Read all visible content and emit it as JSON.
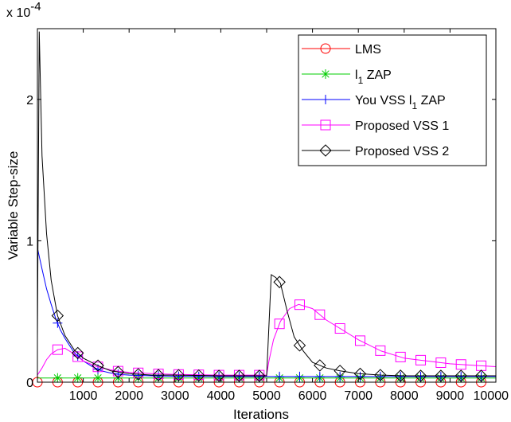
{
  "chart_data": {
    "type": "line",
    "xlabel": "Iterations",
    "ylabel": "Variable Step-size",
    "y_multiplier": "x 10",
    "y_exponent": "-4",
    "xlim": [
      0,
      10000
    ],
    "ylim": [
      0,
      2.5
    ],
    "x_ticks": [
      {
        "value": 1000,
        "label": "1000"
      },
      {
        "value": 2000,
        "label": "2000"
      },
      {
        "value": 3000,
        "label": "3000"
      },
      {
        "value": 4000,
        "label": "4000"
      },
      {
        "value": 5000,
        "label": "5000"
      },
      {
        "value": 6000,
        "label": "6000"
      },
      {
        "value": 7000,
        "label": "7000"
      },
      {
        "value": 8000,
        "label": "8000"
      },
      {
        "value": 9000,
        "label": "9000"
      },
      {
        "value": 10000,
        "label": "10000"
      }
    ],
    "y_ticks": [
      {
        "value": 0,
        "label": "0"
      },
      {
        "value": 1,
        "label": "1"
      },
      {
        "value": 2,
        "label": "2"
      }
    ],
    "grid": false,
    "legend_position": "top-right",
    "series": [
      {
        "name": "LMS",
        "color": "#ff0000",
        "marker": "circle",
        "x": [
          0,
          10000
        ],
        "y": [
          0,
          0
        ],
        "marker_x": [
          0,
          440,
          880,
          1320,
          1760,
          2200,
          2640,
          3080,
          3520,
          3960,
          4400,
          4840,
          5280,
          5720,
          6160,
          6600,
          7040,
          7480,
          7920,
          8360,
          8800,
          9240,
          9680
        ]
      },
      {
        "name": "l1 ZAP",
        "legend_main": "l",
        "legend_sub": "1",
        "legend_rest": " ZAP",
        "color": "#00cc00",
        "marker": "asterisk",
        "x": [
          0,
          10000
        ],
        "y": [
          0.03,
          0.03
        ],
        "marker_x": [
          440,
          880,
          1320,
          1760,
          2200,
          2640,
          3080,
          3520,
          3960,
          4400,
          4840,
          5280,
          5720,
          6160,
          6600,
          7040,
          7480,
          7920,
          8360,
          8800,
          9240,
          9680
        ]
      },
      {
        "name": "You VSS l1 ZAP",
        "legend_main": "You VSS l",
        "legend_sub": "1",
        "legend_rest": " ZAP",
        "color": "#0000ff",
        "marker": "plus",
        "x": [
          0,
          100,
          200,
          300,
          400,
          500,
          600,
          700,
          800,
          900,
          1000,
          1200,
          1400,
          1600,
          1800,
          2000,
          2500,
          3000,
          4000,
          5000,
          6000,
          7000,
          8000,
          9000,
          10000
        ],
        "y": [
          0.95,
          0.8,
          0.66,
          0.55,
          0.45,
          0.37,
          0.31,
          0.26,
          0.21,
          0.18,
          0.15,
          0.11,
          0.08,
          0.065,
          0.055,
          0.05,
          0.045,
          0.042,
          0.04,
          0.04,
          0.04,
          0.04,
          0.04,
          0.04,
          0.04
        ],
        "marker_x": [
          440,
          880,
          1320,
          1760,
          2200,
          2640,
          3080,
          3520,
          3960,
          4400,
          4840,
          5280,
          5720,
          6160,
          6600,
          7040,
          7480,
          7920,
          8360,
          8800,
          9240,
          9680
        ]
      },
      {
        "name": "Proposed VSS 1",
        "color": "#ff00ff",
        "marker": "square",
        "x": [
          0,
          100,
          200,
          300,
          440,
          600,
          800,
          1000,
          1300,
          1700,
          2000,
          2500,
          3000,
          4000,
          5000,
          5050,
          5150,
          5300,
          5500,
          5700,
          6000,
          6300,
          6600,
          7000,
          7500,
          8000,
          8500,
          9000,
          9500,
          10000
        ],
        "y": [
          0.05,
          0.1,
          0.16,
          0.2,
          0.23,
          0.24,
          0.2,
          0.15,
          0.11,
          0.08,
          0.07,
          0.06,
          0.055,
          0.05,
          0.05,
          0.15,
          0.3,
          0.43,
          0.52,
          0.55,
          0.52,
          0.44,
          0.38,
          0.3,
          0.22,
          0.17,
          0.15,
          0.13,
          0.12,
          0.11
        ],
        "marker_x": [
          440,
          880,
          1320,
          1760,
          2200,
          2640,
          3080,
          3520,
          3960,
          4400,
          4840,
          5280,
          5720,
          6160,
          6600,
          7040,
          7480,
          7920,
          8360,
          8800,
          9240,
          9680
        ]
      },
      {
        "name": "Proposed VSS 2",
        "color": "#000000",
        "marker": "diamond",
        "x": [
          0,
          40,
          100,
          200,
          300,
          440,
          600,
          800,
          1000,
          1300,
          1600,
          2000,
          2500,
          3000,
          4000,
          5000,
          5100,
          5200,
          5300,
          5450,
          5600,
          5800,
          6000,
          6300,
          6600,
          7000,
          7500,
          8000,
          9000,
          10000
        ],
        "y": [
          0.3,
          2.48,
          1.6,
          1.05,
          0.72,
          0.47,
          0.33,
          0.23,
          0.17,
          0.12,
          0.08,
          0.06,
          0.05,
          0.05,
          0.045,
          0.045,
          0.76,
          0.74,
          0.7,
          0.5,
          0.32,
          0.22,
          0.14,
          0.1,
          0.08,
          0.06,
          0.05,
          0.045,
          0.045,
          0.045
        ],
        "marker_x": [
          440,
          880,
          1320,
          1760,
          2200,
          2640,
          3080,
          3520,
          3960,
          4400,
          4840,
          5280,
          5720,
          6160,
          6600,
          7040,
          7480,
          7920,
          8360,
          8800,
          9240,
          9680
        ]
      }
    ]
  }
}
